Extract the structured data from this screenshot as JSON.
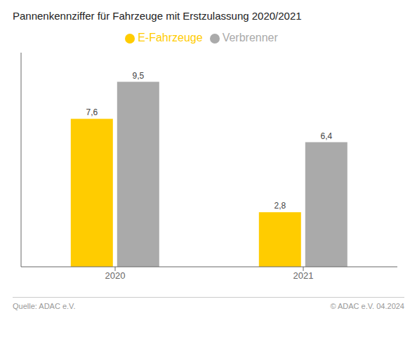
{
  "chart_data": {
    "type": "bar",
    "title": "Pannenkennziffer für Fahrzeuge mit Erstzulassung 2020/2021",
    "categories": [
      "2020",
      "2021"
    ],
    "series": [
      {
        "name": "E-Fahrzeuge",
        "color": "#FFCC00",
        "values": [
          7.6,
          2.8
        ],
        "value_labels": [
          "7,6",
          "2,8"
        ]
      },
      {
        "name": "Verbrenner",
        "color": "#AAAAAA",
        "values": [
          9.5,
          6.4
        ],
        "value_labels": [
          "9,5",
          "6,4"
        ]
      }
    ],
    "ylim": [
      0,
      11
    ],
    "data_labels": true,
    "tick_labels": "x",
    "grid": false,
    "legend": "top",
    "annotations": [
      "Quelle: ADAC e.V.",
      "© ADAC e.V. 04.2024"
    ]
  }
}
